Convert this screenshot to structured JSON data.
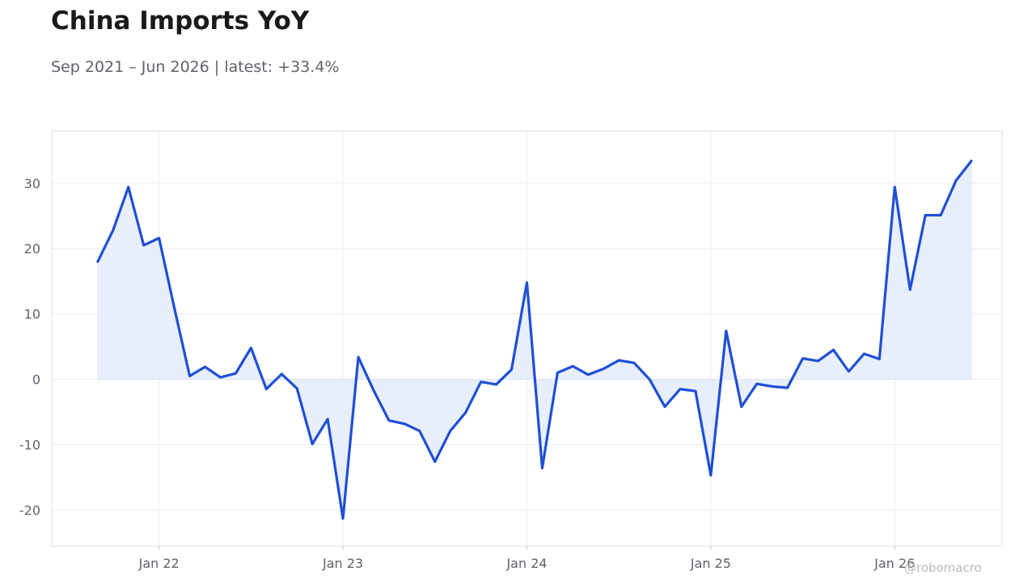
{
  "header": {
    "title": "China Imports YoY",
    "subtitle": "Sep 2021 – Jun 2026 | latest: +33.4%"
  },
  "watermark": "@robomacro",
  "colors": {
    "line": "#1f4fd6",
    "fill": "#e9eefb",
    "grid": "#ececec",
    "frame": "#dddddd",
    "text": "#5f6368"
  },
  "chart_data": {
    "type": "area",
    "title": "China Imports YoY",
    "subtitle": "Sep 2021 – Jun 2026 | latest: +33.4%",
    "xlabel": "",
    "ylabel": "",
    "x_range": [
      "2021-06",
      "2026-08"
    ],
    "ylim": [
      -25.5,
      38
    ],
    "y_ticks": [
      30,
      20,
      10,
      0,
      -10,
      -20
    ],
    "x_ticks": [
      {
        "date": "2022-01",
        "label": "Jan 22"
      },
      {
        "date": "2023-01",
        "label": "Jan 23"
      },
      {
        "date": "2024-01",
        "label": "Jan 24"
      },
      {
        "date": "2025-01",
        "label": "Jan 25"
      },
      {
        "date": "2026-01",
        "label": "Jan 26"
      }
    ],
    "grid": true,
    "series": [
      {
        "x": [
          "2021-09",
          "2021-10",
          "2021-11",
          "2021-12",
          "2022-01",
          "2022-02",
          "2022-03",
          "2022-04",
          "2022-05",
          "2022-06",
          "2022-07",
          "2022-08",
          "2022-09",
          "2022-10",
          "2022-11",
          "2022-12",
          "2023-01",
          "2023-02",
          "2023-03",
          "2023-04",
          "2023-05",
          "2023-06",
          "2023-07",
          "2023-08",
          "2023-09",
          "2023-10",
          "2023-11",
          "2023-12",
          "2024-01",
          "2024-02",
          "2024-03",
          "2024-04",
          "2024-05",
          "2024-06",
          "2024-07",
          "2024-08",
          "2024-09",
          "2024-10",
          "2024-11",
          "2024-12",
          "2025-01",
          "2025-02",
          "2025-03",
          "2025-04",
          "2025-05",
          "2025-06",
          "2025-07",
          "2025-08",
          "2025-09",
          "2025-10",
          "2025-11",
          "2025-12",
          "2026-01",
          "2026-02",
          "2026-03",
          "2026-04",
          "2026-05",
          "2026-06"
        ],
        "values": [
          18.0,
          22.8,
          29.4,
          20.5,
          21.6,
          10.9,
          0.5,
          1.9,
          0.3,
          0.9,
          4.8,
          -1.5,
          0.8,
          -1.4,
          -9.9,
          -6.1,
          -21.3,
          3.4,
          -1.7,
          -6.3,
          -6.8,
          -7.9,
          -12.6,
          -7.9,
          -5.1,
          -0.4,
          -0.8,
          1.5,
          14.8,
          -13.6,
          1.0,
          2.0,
          0.7,
          1.6,
          2.9,
          2.5,
          0.0,
          -4.2,
          -1.5,
          -1.8,
          -14.7,
          7.4,
          -4.2,
          -0.7,
          -1.1,
          -1.3,
          3.2,
          2.8,
          4.5,
          1.2,
          3.9,
          3.1,
          29.4,
          13.7,
          25.1,
          25.1,
          30.4,
          33.4
        ]
      }
    ]
  }
}
